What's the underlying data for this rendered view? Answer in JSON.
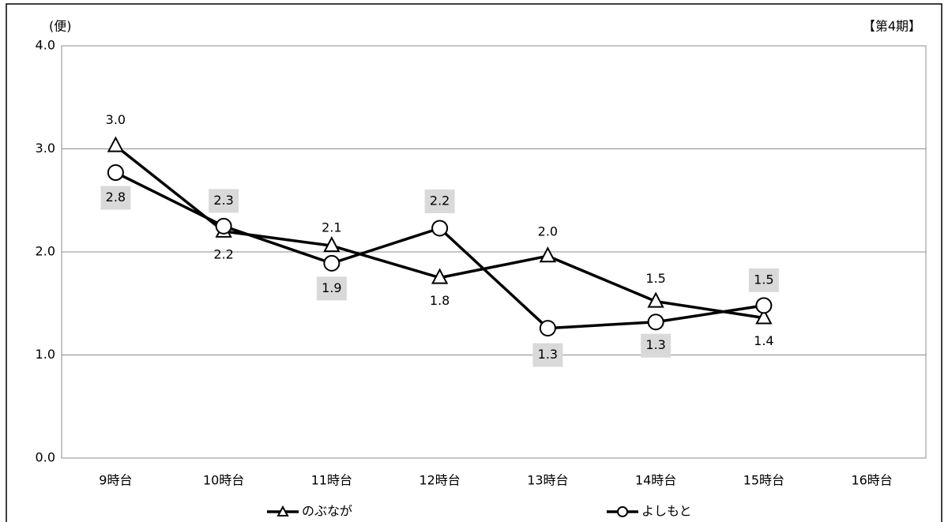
{
  "chart_data": {
    "type": "line",
    "y_unit_label": "(便)",
    "period_label": "【第4期】",
    "categories": [
      "9時台",
      "10時台",
      "11時台",
      "12時台",
      "13時台",
      "14時台",
      "15時台",
      "16時台"
    ],
    "series": [
      {
        "name": "のぶなが",
        "color": "#000000",
        "marker": "triangle",
        "values": [
          3.03,
          2.2,
          2.06,
          1.75,
          1.96,
          1.52,
          1.36,
          null
        ],
        "value_labels": [
          "3.0",
          "2.2",
          "2.1",
          "1.8",
          "2.0",
          "1.5",
          "1.4",
          null
        ]
      },
      {
        "name": "よしもと",
        "color": "#000000",
        "marker": "circle",
        "values": [
          2.77,
          2.25,
          1.89,
          2.23,
          1.26,
          1.32,
          1.48,
          null
        ],
        "value_labels": [
          "2.8",
          "2.3",
          "1.9",
          "2.2",
          "1.3",
          "1.3",
          "1.5",
          null
        ]
      }
    ],
    "ylim": [
      0,
      4
    ],
    "yticks": [
      {
        "value": 0,
        "label": "0.0"
      },
      {
        "value": 1,
        "label": "1.0"
      },
      {
        "value": 2,
        "label": "2.0"
      },
      {
        "value": 3,
        "label": "3.0"
      },
      {
        "value": 4,
        "label": "4.0"
      }
    ],
    "grid": true,
    "legend": "bottom"
  }
}
